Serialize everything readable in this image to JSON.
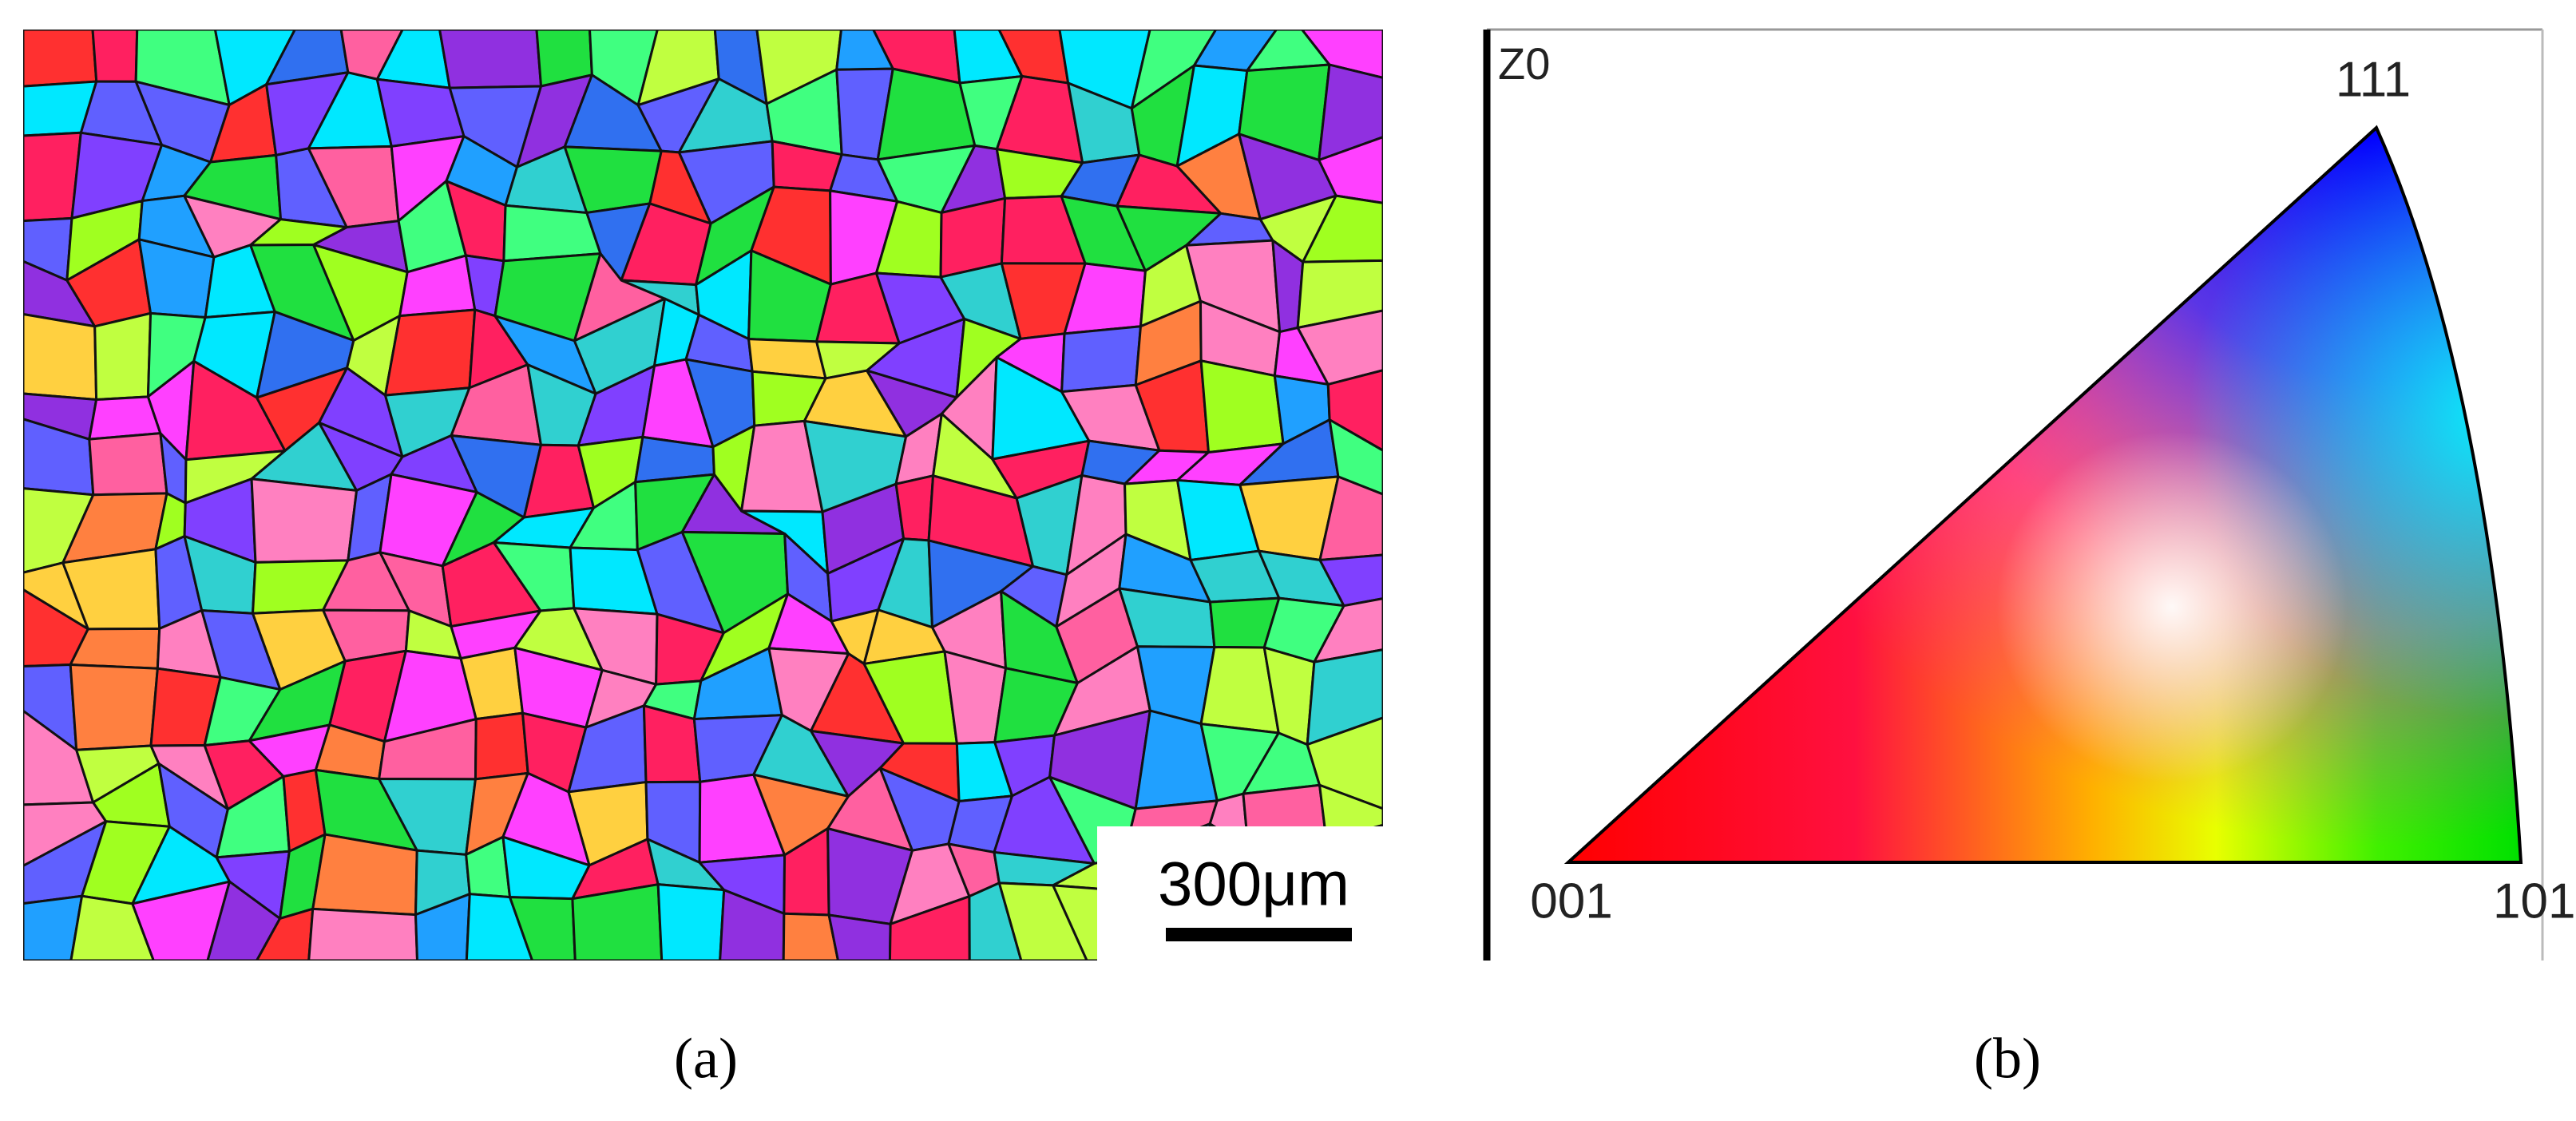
{
  "panel_a": {
    "scale_bar": "300μm",
    "caption": "(a)"
  },
  "panel_b": {
    "direction": "Z0",
    "pole_111": "111",
    "pole_001": "001",
    "pole_101": "101",
    "caption": "(b)"
  }
}
